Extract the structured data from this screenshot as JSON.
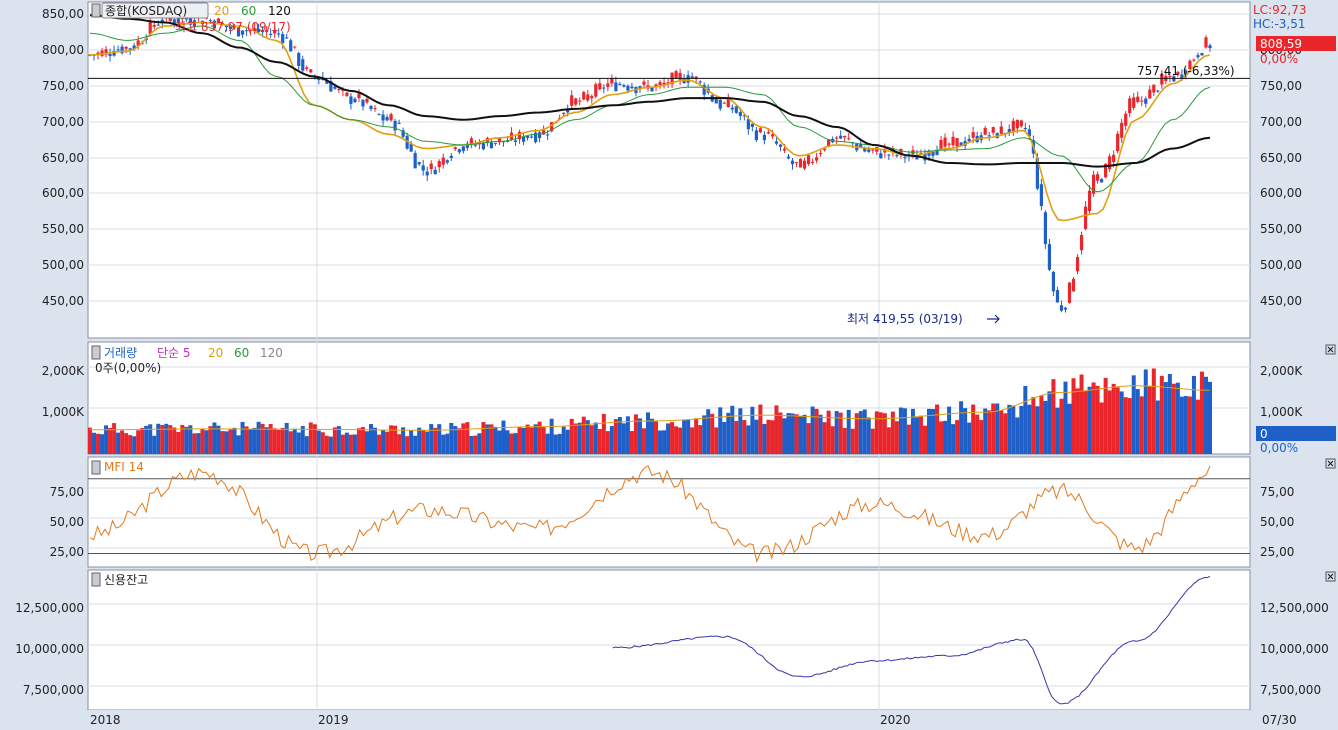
{
  "colors": {
    "bg": "#dbe3ef",
    "plot_bg": "#ffffff",
    "up": "#e8262b",
    "down": "#1f5fc8",
    "ma20": "#e0a010",
    "ma60": "#2a9a3a",
    "ma120": "#111111",
    "mfi": "#e07a20",
    "credit": "#3838a8",
    "grid": "#d9dde5",
    "vol_ma5": "#c030c0"
  },
  "price_panel": {
    "legend": {
      "name": "종합(KOSDAQ)",
      "ma20": "20",
      "ma60": "60",
      "ma120": "120"
    },
    "lc_label": "LC:92,73",
    "hc_label": "HC:-3,51",
    "current_value": "808,59",
    "current_change": "0,00%",
    "high_annotation": "최고 837,97 (09/17)",
    "low_annotation": "최저 419,55 (03/19)",
    "hline_annotation": "757,41 (-6,33%)",
    "y_ticks": [
      "850,00",
      "800,00",
      "750,00",
      "700,00",
      "650,00",
      "600,00",
      "550,00",
      "500,00",
      "450,00"
    ],
    "right_ticks": [
      "800,00",
      "750,00",
      "700,00",
      "650,00",
      "600,00",
      "550,00",
      "500,00",
      "450,00"
    ]
  },
  "volume_panel": {
    "legend": {
      "name": "거래량",
      "simple": "단순 5",
      "ma20": "20",
      "ma60": "60",
      "ma120": "120"
    },
    "sub": "0주(0,00%)",
    "current_value": "0",
    "current_change": "0,00%",
    "y_ticks": [
      "2,000K",
      "1,000K"
    ]
  },
  "mfi_panel": {
    "legend": "MFI 14",
    "y_ticks": [
      "75,00",
      "50,00",
      "25,00"
    ]
  },
  "credit_panel": {
    "legend": "신용잔고",
    "y_ticks": [
      "12,500,000",
      "10,000,000",
      "7,500,000"
    ]
  },
  "x_axis": {
    "labels": [
      "2018",
      "2019",
      "2020"
    ],
    "right_label": "07/30"
  },
  "chart_data": [
    {
      "type": "line",
      "title": "종합(KOSDAQ)",
      "note": "candlestick daily, Jan 2018 - Jul 2020",
      "x": [
        "2018-01",
        "2018-02",
        "2018-03",
        "2018-04",
        "2018-05",
        "2018-06",
        "2018-07",
        "2018-08",
        "2018-09",
        "2018-10",
        "2018-11",
        "2018-12",
        "2019-01",
        "2019-02",
        "2019-03",
        "2019-04",
        "2019-05",
        "2019-06",
        "2019-07",
        "2019-08",
        "2019-09",
        "2019-10",
        "2019-11",
        "2019-12",
        "2020-01",
        "2020-02",
        "2020-03",
        "2020-04",
        "2020-05",
        "2020-06",
        "2020-07"
      ],
      "series": [
        {
          "name": "종합(KOSDAQ)",
          "values": [
            790,
            800,
            840,
            840,
            825,
            820,
            760,
            730,
            700,
            630,
            665,
            670,
            680,
            725,
            750,
            745,
            760,
            720,
            680,
            635,
            675,
            655,
            650,
            665,
            680,
            690,
            440,
            620,
            725,
            760,
            805
          ]
        },
        {
          "name": "20",
          "values": [
            790,
            795,
            830,
            835,
            830,
            810,
            720,
            700,
            680,
            660,
            665,
            675,
            685,
            710,
            735,
            745,
            755,
            730,
            690,
            650,
            665,
            660,
            650,
            660,
            675,
            685,
            560,
            570,
            700,
            750,
            790
          ]
        },
        {
          "name": "60",
          "values": [
            820,
            810,
            820,
            830,
            810,
            760,
            720,
            700,
            690,
            670,
            665,
            670,
            680,
            700,
            720,
            735,
            745,
            745,
            735,
            690,
            670,
            665,
            655,
            658,
            660,
            675,
            650,
            600,
            640,
            700,
            745
          ]
        },
        {
          "name": "120",
          "values": [
            845,
            840,
            835,
            820,
            800,
            780,
            760,
            740,
            720,
            705,
            700,
            705,
            710,
            715,
            720,
            725,
            730,
            730,
            725,
            705,
            690,
            665,
            650,
            640,
            638,
            640,
            640,
            635,
            640,
            660,
            675
          ]
        }
      ],
      "ylim": [
        400,
        855
      ],
      "high": {
        "value": 837.97,
        "date": "09/17"
      },
      "low": {
        "value": 419.55,
        "date": "03/19"
      },
      "hline": 757.41
    },
    {
      "type": "bar",
      "title": "거래량",
      "x": [
        "2018-01",
        "2018-04",
        "2018-07",
        "2018-10",
        "2019-01",
        "2019-04",
        "2019-07",
        "2019-10",
        "2020-01",
        "2020-03",
        "2020-05",
        "2020-07"
      ],
      "values": [
        550,
        570,
        560,
        540,
        620,
        750,
        880,
        800,
        950,
        1400,
        1550,
        1450
      ],
      "unit": "K",
      "ylim": [
        0,
        2500
      ]
    },
    {
      "type": "line",
      "title": "MFI 14",
      "x": [
        "2018-01",
        "2018-04",
        "2018-07",
        "2018-10",
        "2019-01",
        "2019-04",
        "2019-07",
        "2019-10",
        "2020-01",
        "2020-03",
        "2020-05",
        "2020-07"
      ],
      "values": [
        35,
        85,
        20,
        55,
        40,
        85,
        20,
        60,
        35,
        70,
        25,
        85
      ],
      "ylim": [
        10,
        95
      ],
      "levels": [
        80,
        20
      ]
    },
    {
      "type": "line",
      "title": "신용잔고",
      "x": [
        "2019-03",
        "2019-06",
        "2019-08",
        "2019-10",
        "2019-12",
        "2020-02",
        "2020-03",
        "2020-05",
        "2020-07"
      ],
      "values": [
        9800000,
        10500000,
        8000000,
        9000000,
        9300000,
        10300000,
        6300000,
        10200000,
        14200000
      ],
      "ylim": [
        6000000,
        14500000
      ]
    }
  ]
}
